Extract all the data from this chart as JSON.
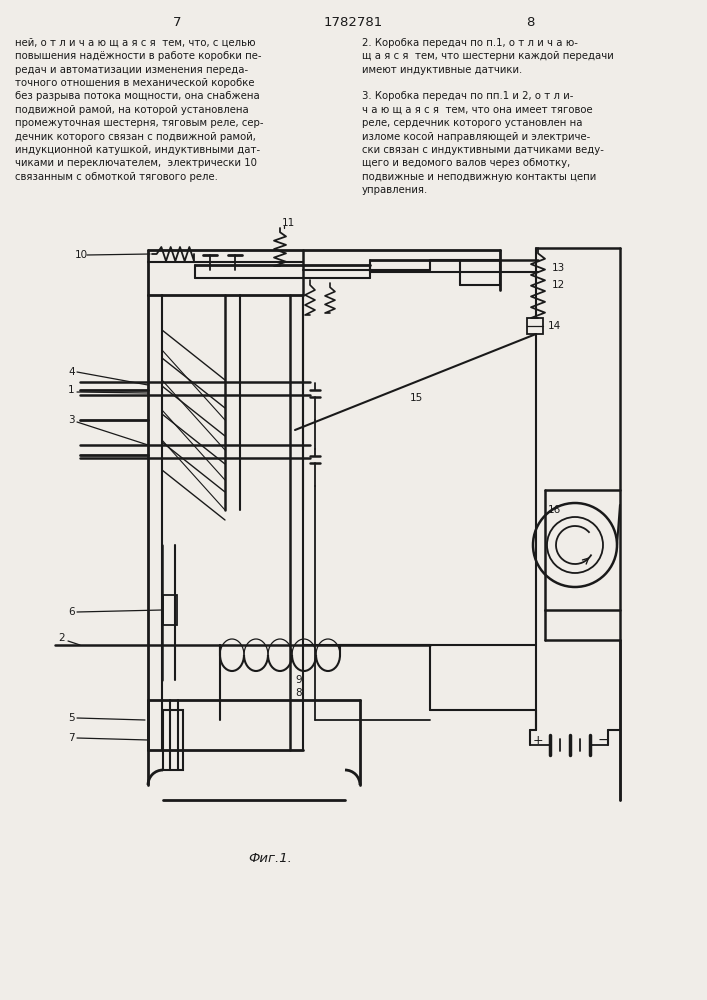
{
  "page_left": "7",
  "page_center": "1782781",
  "page_right": "8",
  "left_text": "ней, о т л и ч а ю щ а я с я  тем, что, с целью\nповышения надёжности в работе коробки пе-\nредач и автоматизации изменения переда-\nточного отношения в механической коробке\nбез разрыва потока мощности, она снабжена\nподвижной рамой, на которой установлена\nпромежуточная шестерня, тяговым реле, сер-\nдечник которого связан с подвижной рамой,\nиндукционной катушкой, индуктивными дат-\nчиками и переключателем,  электрически 10\nсвязанным с обмоткой тягового реле.",
  "right_text": "2. Коробка передач по п.1, о т л и ч а ю-\nщ а я с я  тем, что шестерни каждой передачи\nимеют индуктивные датчики.\n\n3. Коробка передач по пп.1 и 2, о т л и-\nч а ю щ а я с я  тем, что она имеет тяговое\nреле, сердечник которого установлен на\nизломе косой направляющей и электриче-\nски связан с индуктивными датчиками веду-\nщего и ведомого валов через обмотку,\nподвижные и неподвижную контакты цепи\nуправления.",
  "fig_label": "Фиг.1.",
  "bg_color": "#f0ede8",
  "line_color": "#1a1a1a"
}
